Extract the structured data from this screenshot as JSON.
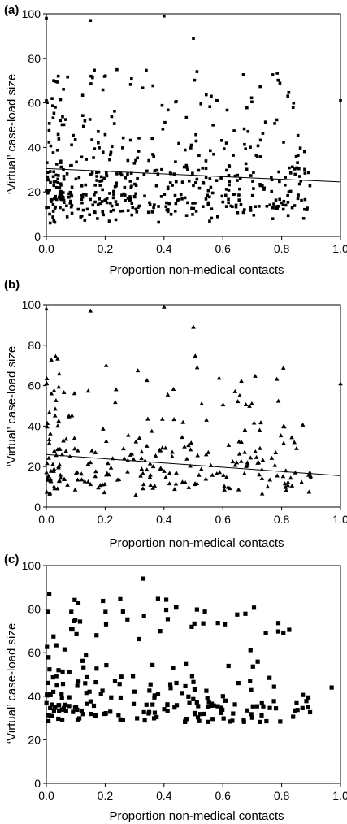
{
  "chart_data": [
    {
      "type": "scatter",
      "panel_label": "(a)",
      "xlabel": "Proportion non-medical contacts",
      "ylabel": "‘Virtual’ case-load size",
      "xlim": [
        0,
        1
      ],
      "ylim": [
        0,
        100
      ],
      "xticks": [
        "0.0",
        "0.2",
        "0.4",
        "0.6",
        "0.8",
        "1.0"
      ],
      "yticks": [
        "0",
        "20",
        "40",
        "60",
        "80",
        "100"
      ],
      "marker": "square-small",
      "trendline": {
        "x": [
          0,
          1
        ],
        "y": [
          30.5,
          24.5
        ]
      },
      "seed": 11,
      "count": 520
    },
    {
      "type": "scatter",
      "panel_label": "(b)",
      "xlabel": "Proportion non-medical contacts",
      "ylabel": "‘Virtual’ case-load size",
      "xlim": [
        0,
        1
      ],
      "ylim": [
        0,
        100
      ],
      "xticks": [
        "0.0",
        "0.2",
        "0.4",
        "0.6",
        "0.8",
        "1.0"
      ],
      "yticks": [
        "0",
        "20",
        "40",
        "60",
        "80",
        "100"
      ],
      "marker": "triangle",
      "trendline": {
        "x": [
          0,
          1
        ],
        "y": [
          26,
          15.5
        ]
      },
      "seed": 23,
      "count": 260
    },
    {
      "type": "scatter",
      "panel_label": "(c)",
      "xlabel": "Proportion non-medical contacts",
      "ylabel": "‘Virtual’ case-load size",
      "xlim": [
        0,
        1
      ],
      "ylim": [
        0,
        100
      ],
      "xticks": [
        "0.0",
        "0.2",
        "0.4",
        "0.6",
        "0.8",
        "1.0"
      ],
      "yticks": [
        "0",
        "20",
        "40",
        "60",
        "80",
        "100"
      ],
      "marker": "square",
      "trendline": null,
      "seed": 37,
      "count": 230
    }
  ]
}
